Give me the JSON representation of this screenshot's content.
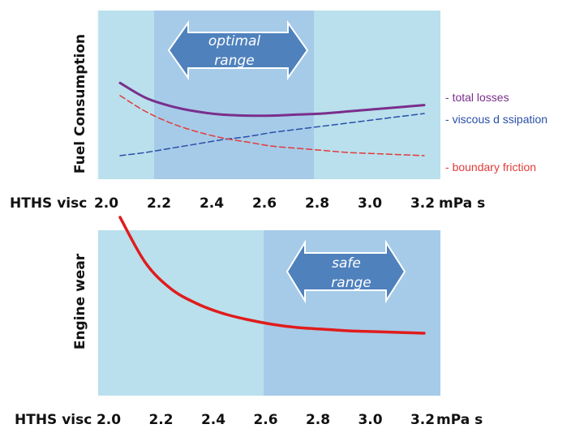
{
  "chart_data": [
    {
      "type": "line",
      "ylabel": "Fuel Consumption",
      "xlabel": "HTHS visc",
      "x_unit": "mPa s",
      "xlim": [
        2.0,
        3.2
      ],
      "x_ticks": [
        "2.0",
        "2.2",
        "2.4",
        "2.6",
        "2.8",
        "3.0",
        "3.2"
      ],
      "highlight": {
        "label_lines": [
          "optimal",
          "range"
        ],
        "x_range": [
          2.2,
          2.8
        ]
      },
      "x": [
        2.0,
        2.1,
        2.2,
        2.3,
        2.4,
        2.5,
        2.6,
        2.7,
        2.8,
        2.9,
        3.0,
        3.1,
        3.2
      ],
      "series": [
        {
          "name": "total losses",
          "color": "#7a2e8c",
          "dashed": false,
          "values": [
            0.79,
            0.65,
            0.57,
            0.52,
            0.49,
            0.48,
            0.48,
            0.49,
            0.5,
            0.52,
            0.54,
            0.56,
            0.58
          ]
        },
        {
          "name": "viscous d ssipation",
          "color": "#2b4fa8",
          "dashed": true,
          "values": [
            0.1,
            0.13,
            0.17,
            0.21,
            0.25,
            0.28,
            0.32,
            0.35,
            0.38,
            0.41,
            0.44,
            0.47,
            0.5
          ]
        },
        {
          "name": "boundary friction",
          "color": "#e23b3b",
          "dashed": true,
          "values": [
            0.67,
            0.52,
            0.41,
            0.33,
            0.27,
            0.23,
            0.19,
            0.17,
            0.15,
            0.13,
            0.12,
            0.11,
            0.1
          ]
        }
      ],
      "legend_prefix": "- "
    },
    {
      "type": "line",
      "ylabel": "Engine wear",
      "xlabel": "HTHS visc",
      "x_unit": "mPa s",
      "xlim": [
        2.0,
        3.2
      ],
      "x_ticks": [
        "2.0",
        "2.2",
        "2.4",
        "2.6",
        "2.8",
        "3.0",
        "3.2"
      ],
      "highlight": {
        "label_lines": [
          "safe",
          "range"
        ],
        "x_range": [
          2.6,
          3.2
        ]
      },
      "x": [
        2.0,
        2.1,
        2.2,
        2.3,
        2.4,
        2.5,
        2.6,
        2.7,
        2.8,
        2.9,
        3.0,
        3.1,
        3.2
      ],
      "series": [
        {
          "name": "",
          "color": "#e01c1c",
          "dashed": false,
          "values": [
            0.86,
            0.58,
            0.42,
            0.33,
            0.27,
            0.23,
            0.2,
            0.18,
            0.17,
            0.16,
            0.155,
            0.15,
            0.145
          ]
        }
      ]
    }
  ],
  "colors": {
    "panel_bg": "#b9e0ec",
    "highlight_bg": "#a6cbe8",
    "arrow_fill": "#4f81bd",
    "arrow_stroke": "#ffffff"
  }
}
